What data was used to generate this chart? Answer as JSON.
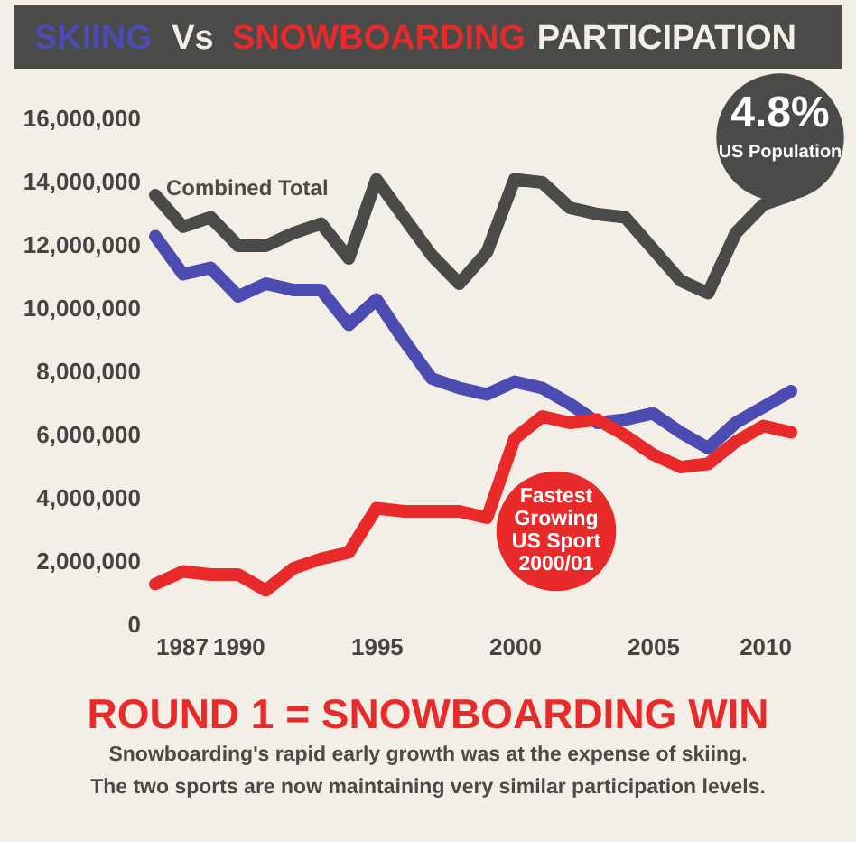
{
  "chart_data": {
    "type": "line",
    "title": "SKIING Vs SNOWBOARDING PARTICIPATION",
    "x": [
      1987,
      1988,
      1989,
      1990,
      1991,
      1992,
      1993,
      1994,
      1995,
      1996,
      1997,
      1998,
      1999,
      2000,
      2001,
      2002,
      2003,
      2004,
      2005,
      2006,
      2007,
      2008,
      2009,
      2010
    ],
    "series": [
      {
        "name": "Combined Total",
        "color": "#4a4a48",
        "values": [
          13600000,
          12600000,
          12900000,
          12000000,
          12000000,
          12400000,
          12700000,
          11600000,
          14100000,
          12900000,
          11700000,
          10800000,
          11800000,
          14100000,
          14000000,
          13200000,
          13000000,
          12900000,
          11900000,
          10900000,
          10500000,
          12400000,
          13300000,
          13600000
        ]
      },
      {
        "color": "#4b4bb2",
        "values": [
          12300000,
          11100000,
          11300000,
          10400000,
          10800000,
          10600000,
          10600000,
          9500000,
          10300000,
          9000000,
          7800000,
          7500000,
          7300000,
          7700000,
          7500000,
          7000000,
          6400000,
          6500000,
          6700000,
          6100000,
          5600000,
          6400000,
          6900000,
          7400000
        ]
      },
      {
        "color": "#e82a2a",
        "values": [
          1300000,
          1700000,
          1600000,
          1600000,
          1100000,
          1800000,
          2100000,
          2300000,
          3700000,
          3600000,
          3600000,
          3600000,
          3400000,
          5900000,
          6600000,
          6400000,
          6500000,
          6000000,
          5400000,
          5000000,
          5100000,
          5800000,
          6300000,
          6100000
        ]
      }
    ],
    "xlim": [
      1987,
      2010
    ],
    "xticks": [
      1987,
      1990,
      1995,
      2000,
      2005,
      2010
    ],
    "ylim": [
      0,
      16000000
    ],
    "yticks": [
      0,
      {
        "value": 2000000,
        "label": "2,000,000"
      },
      {
        "value": 4000000,
        "label": "4,000,000"
      },
      {
        "value": 6000000,
        "label": "6,000,000"
      },
      {
        "value": 8000000,
        "label": "8,000,000"
      },
      {
        "value": 10000000,
        "label": "10,000,000"
      },
      {
        "value": 12000000,
        "label": "12,000,000"
      },
      {
        "value": 14000000,
        "label": "14,000,000"
      },
      {
        "value": 16000000,
        "label": "16,000,000"
      }
    ],
    "annotations": [
      "4.8%\nUS Population",
      "Fastest\nGrowing\nUS Sport\n2000/01",
      "ROUND 1 = SNOWBOARDING WIN",
      "Snowboarding's rapid early growth was at the expense of skiing.\nThe two sports are now maintaining very similar participation levels."
    ]
  }
}
